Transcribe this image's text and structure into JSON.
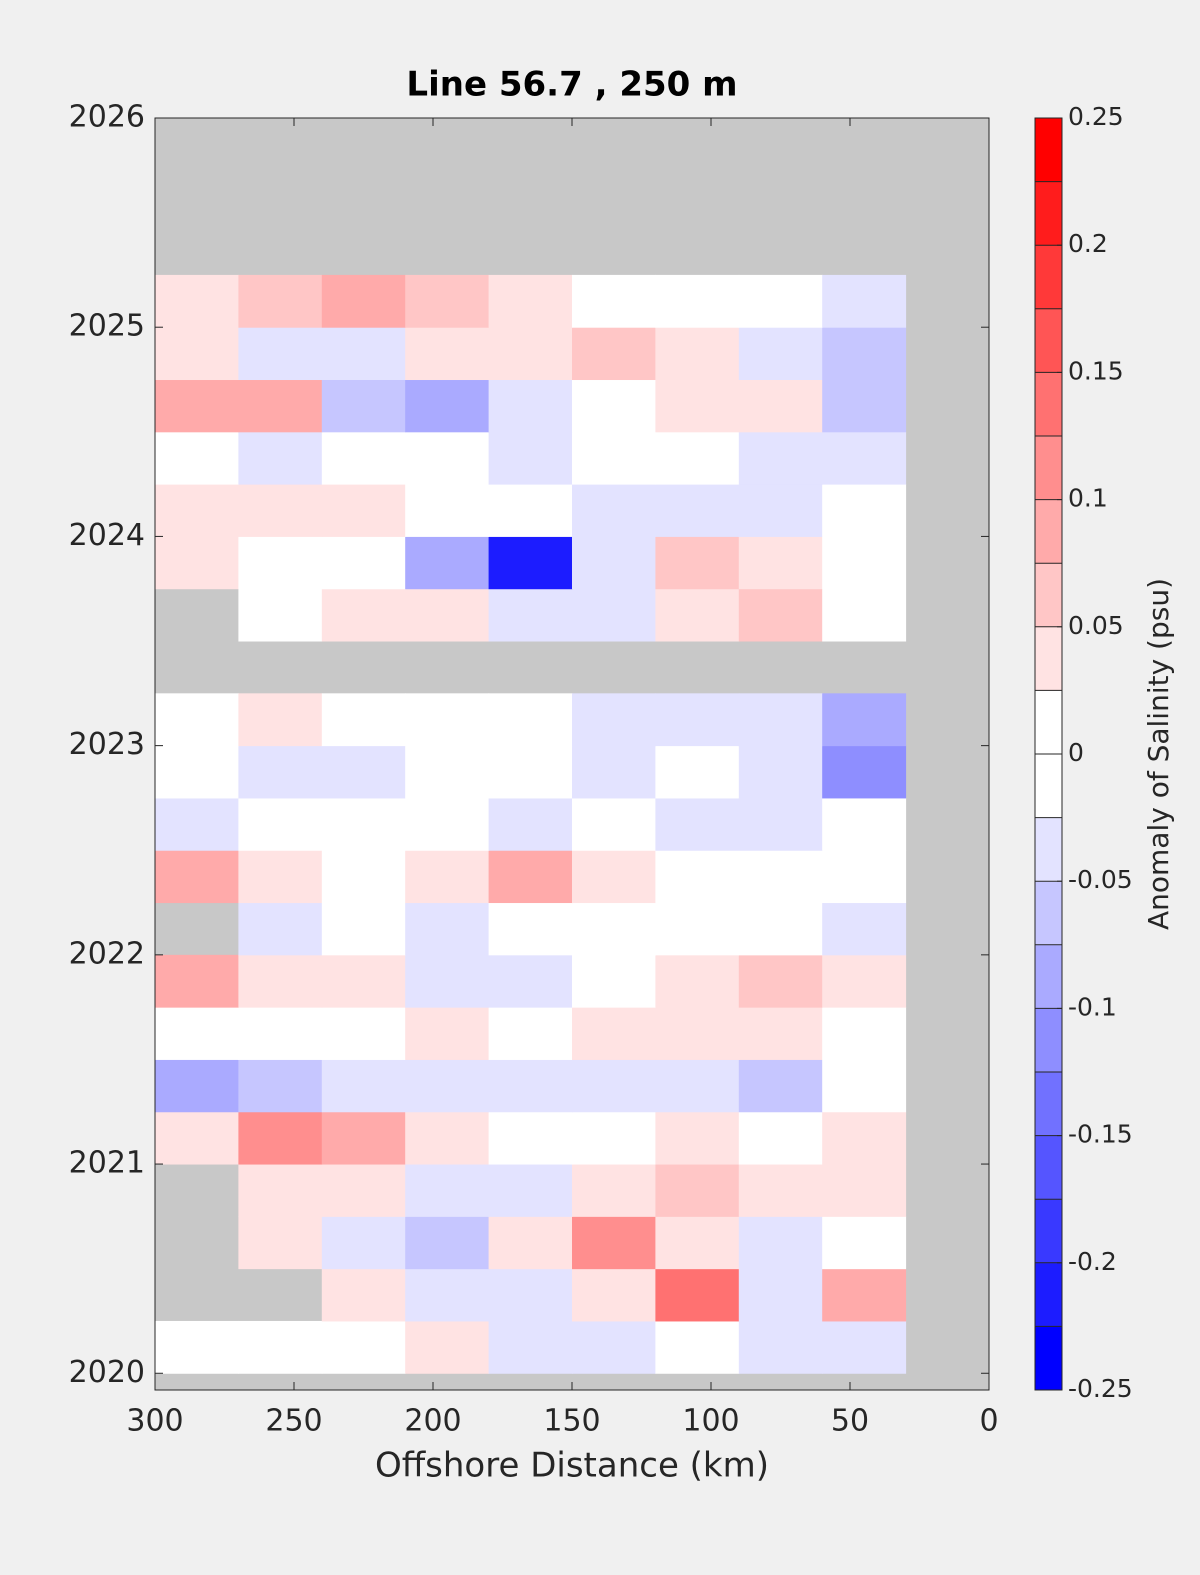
{
  "chart_data": {
    "type": "contour",
    "title": "Line 56.7 , 250 m",
    "xlabel": "Offshore Distance (km)",
    "colorbar_label": "Anomaly of Salinity (psu)",
    "xlim": [
      300,
      0
    ],
    "xticks": [
      300,
      250,
      200,
      150,
      100,
      50,
      0
    ],
    "ylim": [
      2019.92,
      2026
    ],
    "yticks": [
      2020,
      2021,
      2022,
      2023,
      2024,
      2025,
      2026
    ],
    "clim": [
      -0.25,
      0.25
    ],
    "cticks": [
      -0.25,
      -0.2,
      -0.15,
      -0.1,
      -0.05,
      0,
      0.05,
      0.1,
      0.15,
      0.2,
      0.25
    ],
    "level_step": 0.025,
    "colormap": {
      "negative": "#0000ff",
      "zero": "#ffffff",
      "positive": "#ff0000"
    },
    "nan_color": "#c8c8c8",
    "x": [
      285,
      255,
      225,
      195,
      165,
      135,
      105,
      75,
      45
    ],
    "y": [
      2020.125,
      2020.375,
      2020.625,
      2020.875,
      2021.125,
      2021.375,
      2021.625,
      2021.875,
      2022.125,
      2022.375,
      2022.625,
      2022.875,
      2023.125,
      2023.375,
      2023.625,
      2023.875,
      2024.125,
      2024.375,
      2024.625,
      2024.875,
      2025.125
    ],
    "z": [
      [
        0.0,
        -0.02,
        0.0,
        0.03,
        -0.04,
        -0.03,
        0.0,
        -0.04,
        -0.03
      ],
      [
        null,
        null,
        0.04,
        -0.05,
        -0.03,
        0.05,
        0.14,
        -0.03,
        0.09
      ],
      [
        null,
        0.03,
        -0.05,
        -0.07,
        0.05,
        0.11,
        0.05,
        -0.03,
        0.02
      ],
      [
        null,
        0.05,
        0.03,
        -0.04,
        -0.05,
        0.03,
        0.07,
        0.04,
        0.03
      ],
      [
        0.04,
        0.12,
        0.1,
        0.04,
        0.0,
        0.0,
        0.03,
        0.0,
        0.03
      ],
      [
        -0.08,
        -0.06,
        -0.03,
        -0.03,
        -0.05,
        -0.03,
        -0.03,
        -0.06,
        0.0
      ],
      [
        0.02,
        0.0,
        0.0,
        0.03,
        0.0,
        0.04,
        0.05,
        0.03,
        0.0
      ],
      [
        0.08,
        0.05,
        0.03,
        -0.05,
        -0.03,
        0.02,
        0.05,
        0.07,
        0.04
      ],
      [
        null,
        -0.03,
        0.0,
        -0.03,
        -0.02,
        0.02,
        0.0,
        0.0,
        -0.03
      ],
      [
        0.08,
        0.04,
        0.02,
        0.05,
        0.08,
        0.04,
        0.0,
        0.0,
        0.0
      ],
      [
        -0.03,
        0.0,
        0.0,
        0.0,
        -0.03,
        0.0,
        -0.03,
        -0.03,
        -0.02
      ],
      [
        0.0,
        -0.03,
        -0.03,
        0.0,
        -0.02,
        -0.03,
        -0.02,
        -0.05,
        -0.1
      ],
      [
        0.0,
        0.03,
        0.02,
        0.0,
        -0.02,
        -0.03,
        -0.04,
        -0.05,
        -0.08
      ],
      [
        null,
        null,
        null,
        null,
        null,
        null,
        null,
        null,
        null
      ],
      [
        null,
        0.02,
        0.03,
        0.03,
        -0.05,
        -0.04,
        0.03,
        0.06,
        0.02
      ],
      [
        0.03,
        0.0,
        0.0,
        -0.08,
        -0.2,
        -0.05,
        0.06,
        0.05,
        0.0
      ],
      [
        0.04,
        0.05,
        0.03,
        0.0,
        0.0,
        -0.03,
        -0.03,
        -0.04,
        -0.02
      ],
      [
        0.0,
        -0.03,
        0.0,
        0.02,
        -0.03,
        0.0,
        -0.02,
        -0.04,
        -0.03
      ],
      [
        0.08,
        0.09,
        -0.07,
        -0.08,
        -0.04,
        0.0,
        0.05,
        0.03,
        -0.06
      ],
      [
        0.03,
        -0.05,
        -0.04,
        0.03,
        0.05,
        0.07,
        0.04,
        -0.03,
        -0.06
      ],
      [
        0.05,
        0.06,
        0.1,
        0.06,
        0.03,
        0.0,
        0.0,
        -0.02,
        -0.03
      ]
    ]
  }
}
